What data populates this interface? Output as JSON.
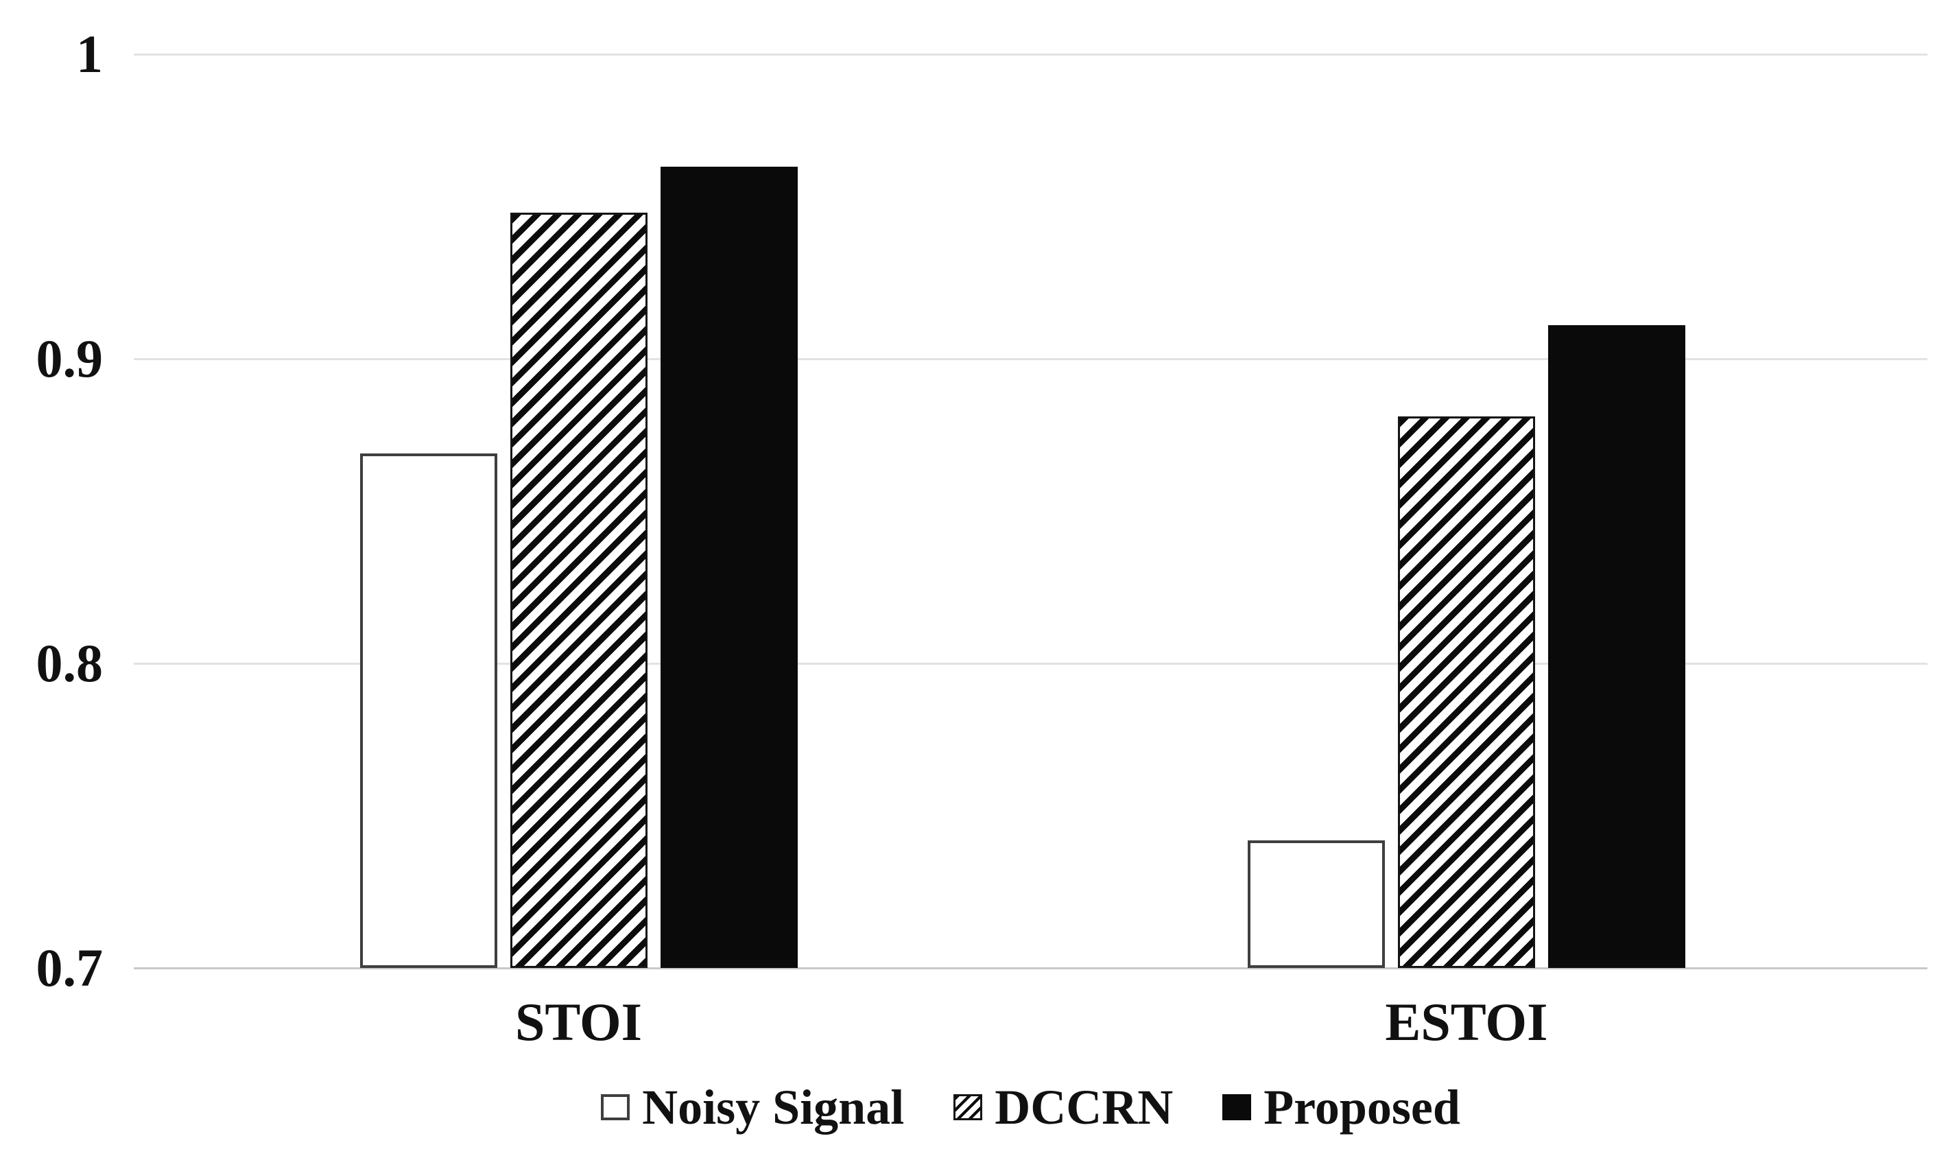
{
  "figure": {
    "kind": "grouped-bar-chart",
    "background": "#ffffff"
  },
  "chart_data": {
    "type": "bar",
    "title": "",
    "xlabel": "",
    "ylabel": "",
    "categories": [
      "STOI",
      "ESTOI"
    ],
    "series": [
      {
        "name": "Noisy Signal",
        "fill": "white",
        "values": [
          0.869,
          0.742
        ]
      },
      {
        "name": "DCCRN",
        "fill": "hatched",
        "values": [
          0.948,
          0.881
        ]
      },
      {
        "name": "Proposed",
        "fill": "black",
        "values": [
          0.963,
          0.911
        ]
      }
    ],
    "ylim": [
      0.7,
      1.0
    ],
    "yticks": [
      1.0,
      0.9,
      0.8,
      0.7
    ],
    "ytick_labels": [
      "1",
      "0.9",
      "0.8",
      "0.7"
    ],
    "grid": true,
    "legend_position": "bottom-center"
  },
  "colors": {
    "bar_black": "#0a0a0a",
    "hatch_stroke": "#0c0c0c",
    "hatch_background": "#ffffff",
    "white_bar_fill": "#ffffff",
    "white_bar_border": "#3f3f3f",
    "hatched_bar_border": "#141414",
    "gridline": "#e2e2e2",
    "baseline": "#c9c9c9",
    "text": "#111111",
    "background": "#ffffff"
  }
}
